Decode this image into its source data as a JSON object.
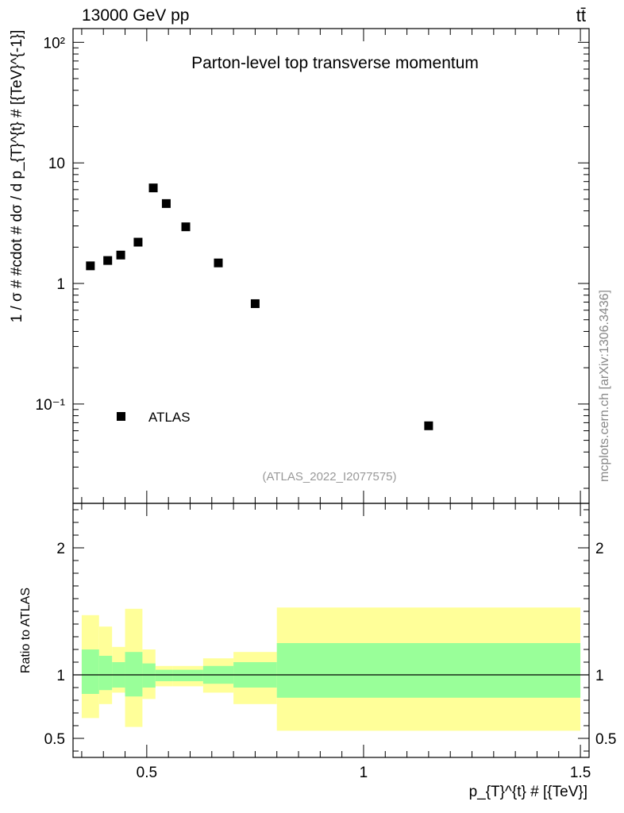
{
  "header": {
    "energy_label": "13000 GeV pp",
    "process_label": "tt̄",
    "watermark": "mcplots.cern.ch [arXiv:1306.3436]"
  },
  "chart_data": [
    {
      "type": "scatter",
      "title": "Parton-level top transverse momentum",
      "ylabel": "1 / σ # #cdot # dσ / d p_{T}^{t} # [{TeV}^{-1}]",
      "xlabel": "p_{T}^{t} # [{TeV}]",
      "yscale": "log",
      "xlim": [
        0.33,
        1.52
      ],
      "ylim": [
        0.015,
        130
      ],
      "y_tick_labels": [
        "10⁻¹",
        "1",
        "10",
        "10²"
      ],
      "legend": {
        "placement": "bottom-left",
        "entries": [
          "ATLAS"
        ]
      },
      "annotation": "(ATLAS_2022_I2077575)",
      "series": [
        {
          "name": "ATLAS",
          "x": [
            0.37,
            0.41,
            0.44,
            0.48,
            0.515,
            0.545,
            0.59,
            0.665,
            0.75,
            1.15
          ],
          "y": [
            1.4,
            1.55,
            1.72,
            2.2,
            6.2,
            4.6,
            2.95,
            1.48,
            0.68,
            0.066
          ]
        }
      ]
    },
    {
      "type": "area",
      "ylabel": "Ratio to ATLAS",
      "xlabel": "p_{T}^{t} # [{TeV}]",
      "xlim": [
        0.33,
        1.52
      ],
      "ylim": [
        0.35,
        2.35
      ],
      "x_tick_labels": [
        "0.5",
        "1",
        "1.5"
      ],
      "y_tick_labels": [
        "0.5",
        "1",
        "2"
      ],
      "bins": [
        0.35,
        0.39,
        0.42,
        0.45,
        0.49,
        0.52,
        0.56,
        0.63,
        0.7,
        0.8,
        1.5
      ],
      "band_inner": {
        "low": [
          0.85,
          0.88,
          0.9,
          0.83,
          0.9,
          0.95,
          0.95,
          0.93,
          0.9,
          0.82
        ],
        "high": [
          1.2,
          1.15,
          1.1,
          1.18,
          1.09,
          1.04,
          1.04,
          1.07,
          1.1,
          1.25
        ]
      },
      "band_outer": {
        "low": [
          0.66,
          0.77,
          0.86,
          0.59,
          0.81,
          0.91,
          0.91,
          0.86,
          0.77,
          0.56
        ],
        "high": [
          1.47,
          1.38,
          1.22,
          1.52,
          1.2,
          1.07,
          1.07,
          1.13,
          1.18,
          1.53
        ]
      },
      "reference_line": 1.0,
      "colors": {
        "inner": "#99ff99",
        "outer": "#ffff99",
        "marker": "#000000"
      }
    }
  ]
}
